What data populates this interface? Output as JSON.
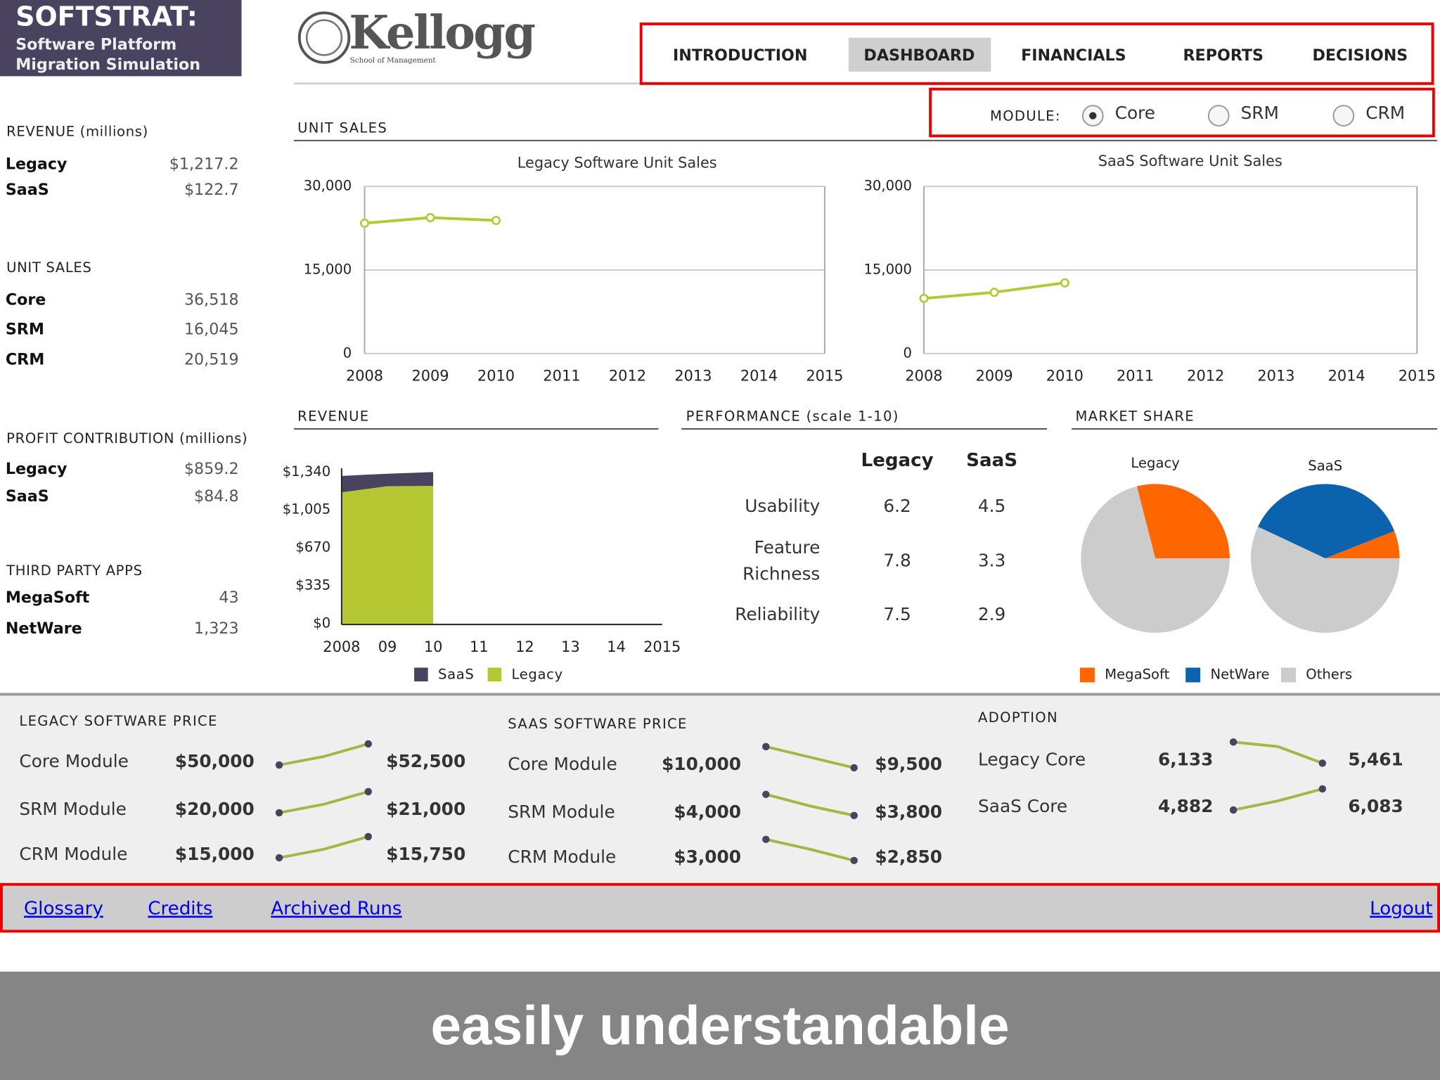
{
  "brand": {
    "title": "SOFTSTRAT:",
    "subtitle": [
      "Software Platform",
      "Migration Simulation"
    ]
  },
  "logo": {
    "name": "Kellogg",
    "tagline": "School of Management"
  },
  "nav": {
    "items": [
      "INTRODUCTION",
      "DASHBOARD",
      "FINANCIALS",
      "REPORTS",
      "DECISIONS"
    ],
    "active": 1
  },
  "module": {
    "label": "MODULE:",
    "options": [
      "Core",
      "SRM",
      "CRM"
    ],
    "selected": 0
  },
  "sidebar": [
    {
      "title": "REVENUE (millions)",
      "rows": [
        {
          "name": "Legacy",
          "value": "$1,217.2"
        },
        {
          "name": "SaaS",
          "value": "$122.7"
        }
      ]
    },
    {
      "title": "UNIT SALES",
      "rows": [
        {
          "name": "Core",
          "value": "36,518"
        },
        {
          "name": "SRM",
          "value": "16,045"
        },
        {
          "name": "CRM",
          "value": "20,519"
        }
      ]
    },
    {
      "title": "PROFIT CONTRIBUTION (millions)",
      "rows": [
        {
          "name": "Legacy",
          "value": "$859.2"
        },
        {
          "name": "SaaS",
          "value": "$84.8"
        }
      ]
    },
    {
      "title": "THIRD PARTY APPS",
      "rows": [
        {
          "name": "MegaSoft",
          "value": "43"
        },
        {
          "name": "NetWare",
          "value": "1,323"
        }
      ]
    }
  ],
  "unit_sales": {
    "heading": "UNIT SALES",
    "charts": [
      {
        "type": "line",
        "title": "Legacy Software Unit Sales",
        "x": [
          2008,
          2009,
          2010,
          2011,
          2012,
          2013,
          2014,
          2015
        ],
        "values": [
          23400,
          24400,
          23900,
          null,
          null,
          null,
          null,
          null
        ],
        "color": "#b5c833",
        "xlim": [
          2008,
          2015
        ],
        "xticks": [
          2008,
          2009,
          2010,
          2011,
          2012,
          2013,
          2014,
          2015
        ],
        "ylim": [
          0,
          30000
        ],
        "yticks": [
          0,
          {
            "value": 15000,
            "label": "15,000"
          },
          {
            "value": 30000,
            "label": "30,000"
          }
        ],
        "grid": true
      },
      {
        "type": "line",
        "title": "SaaS Software Unit Sales",
        "x": [
          2008,
          2009,
          2010,
          2011,
          2012,
          2013,
          2014,
          2015
        ],
        "values": [
          9900,
          11000,
          12700,
          null,
          null,
          null,
          null,
          null
        ],
        "color": "#b5c833",
        "xlim": [
          2008,
          2015
        ],
        "xticks": [
          2008,
          2009,
          2010,
          2011,
          2012,
          2013,
          2014,
          2015
        ],
        "ylim": [
          0,
          30000
        ],
        "yticks": [
          0,
          {
            "value": 15000,
            "label": "15,000"
          },
          {
            "value": 30000,
            "label": "30,000"
          }
        ],
        "grid": true
      }
    ]
  },
  "revenue": {
    "heading": "REVENUE",
    "chart": {
      "type": "stacked_area",
      "categories": [
        "2008",
        "09",
        "10",
        "11",
        "12",
        "13",
        "14",
        "2015"
      ],
      "series": [
        {
          "name": "SaaS",
          "color": "#4a4360",
          "values": [
            146,
            110,
            123,
            null,
            null,
            null,
            null,
            null
          ]
        },
        {
          "name": "Legacy",
          "color": "#b5c833",
          "values": [
            1160,
            1215,
            1217,
            null,
            null,
            null,
            null,
            null
          ]
        }
      ],
      "ylim": [
        0,
        1340
      ],
      "yticks": [
        {
          "value": 0,
          "label": "$0"
        },
        {
          "value": 335,
          "label": "$335"
        },
        {
          "value": 670,
          "label": "$670"
        },
        {
          "value": 1005,
          "label": "$1,005"
        },
        {
          "value": 1340,
          "label": "$1,340"
        }
      ]
    }
  },
  "performance": {
    "heading": "PERFORMANCE (scale 1-10)",
    "columns": [
      "Legacy",
      "SaaS"
    ],
    "rows": [
      {
        "label": [
          "Usability"
        ],
        "values": [
          "6.2",
          "4.5"
        ]
      },
      {
        "label": [
          "Feature",
          "Richness"
        ],
        "values": [
          "7.8",
          "3.3"
        ]
      },
      {
        "label": [
          "Reliability"
        ],
        "values": [
          "7.5",
          "2.9"
        ]
      }
    ]
  },
  "market_share": {
    "heading": "MARKET SHARE",
    "series": [
      {
        "name": "MegaSoft",
        "color": "#ff6600"
      },
      {
        "name": "NetWare",
        "color": "#0b63ad"
      },
      {
        "name": "Others",
        "color": "#cccccc"
      }
    ],
    "charts": [
      {
        "type": "pie",
        "title": "Legacy",
        "values": [
          29,
          0,
          71
        ]
      },
      {
        "type": "pie",
        "title": "SaaS",
        "values": [
          6,
          37,
          57
        ]
      }
    ]
  },
  "panels": [
    {
      "heading": "LEGACY SOFTWARE PRICE",
      "rows": [
        {
          "name": "Core Module",
          "start": "$50,000",
          "end": "$52,500",
          "trend": [
            50000,
            51000,
            52500
          ]
        },
        {
          "name": "SRM Module",
          "start": "$20,000",
          "end": "$21,000",
          "trend": [
            20000,
            20400,
            21000
          ]
        },
        {
          "name": "CRM Module",
          "start": "$15,000",
          "end": "$15,750",
          "trend": [
            15000,
            15300,
            15750
          ]
        }
      ]
    },
    {
      "heading": "SAAS SOFTWARE PRICE",
      "rows": [
        {
          "name": "Core Module",
          "start": "$10,000",
          "end": "$9,500",
          "trend": [
            10000,
            9750,
            9500
          ]
        },
        {
          "name": "SRM Module",
          "start": "$4,000",
          "end": "$3,800",
          "trend": [
            4000,
            3890,
            3800
          ]
        },
        {
          "name": "CRM Module",
          "start": "$3,000",
          "end": "$2,850",
          "trend": [
            3000,
            2930,
            2850
          ]
        }
      ]
    },
    {
      "heading": "ADOPTION",
      "rows": [
        {
          "name": "Legacy Core",
          "start": "6,133",
          "end": "5,461",
          "trend": [
            6133,
            5990,
            5461
          ]
        },
        {
          "name": "SaaS Core",
          "start": "4,882",
          "end": "6,083",
          "trend": [
            4882,
            5400,
            6083
          ]
        }
      ]
    }
  ],
  "footer": {
    "links": [
      "Glossary",
      "Credits",
      "Archived Runs"
    ],
    "logout": "Logout"
  },
  "caption": "easily understandable"
}
